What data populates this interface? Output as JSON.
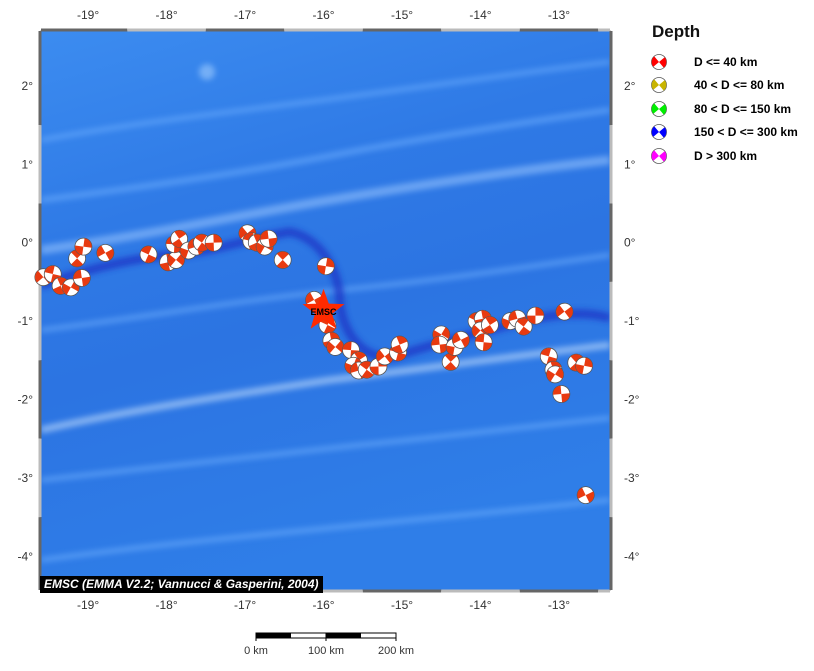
{
  "map": {
    "extent": {
      "lon_min": -19.6,
      "lon_max": -12.35,
      "lat_min": -4.43,
      "lat_max": 2.7
    },
    "lon_ticks": [
      "-19°",
      "-18°",
      "-17°",
      "-16°",
      "-15°",
      "-14°",
      "-13°"
    ],
    "lat_ticks": [
      "2°",
      "1°",
      "0°",
      "-1°",
      "-2°",
      "-3°",
      "-4°"
    ],
    "epicenter": {
      "label": "EMSC",
      "lon": -16.0,
      "lat": -0.87,
      "color": "#ff2a00"
    },
    "events": [
      [
        -19.57,
        -0.44
      ],
      [
        -19.45,
        -0.4
      ],
      [
        -19.35,
        -0.55
      ],
      [
        -19.22,
        -0.57
      ],
      [
        -19.08,
        -0.45
      ],
      [
        -19.14,
        -0.2
      ],
      [
        -19.06,
        -0.05
      ],
      [
        -18.78,
        -0.13
      ],
      [
        -18.23,
        -0.15
      ],
      [
        -17.98,
        -0.25
      ],
      [
        -17.88,
        -0.22
      ],
      [
        -17.9,
        -0.02
      ],
      [
        -17.84,
        0.05
      ],
      [
        -17.72,
        -0.1
      ],
      [
        -17.62,
        -0.05
      ],
      [
        -17.55,
        0.0
      ],
      [
        -17.4,
        0.0
      ],
      [
        -16.97,
        0.12
      ],
      [
        -16.92,
        0.02
      ],
      [
        -16.85,
        0.0
      ],
      [
        -16.75,
        -0.05
      ],
      [
        -16.7,
        0.05
      ],
      [
        -16.52,
        -0.22
      ],
      [
        -15.97,
        -0.3
      ],
      [
        -16.12,
        -0.73
      ],
      [
        -15.95,
        -1.05
      ],
      [
        -15.9,
        -1.25
      ],
      [
        -15.85,
        -1.33
      ],
      [
        -15.65,
        -1.37
      ],
      [
        -15.55,
        -1.5
      ],
      [
        -15.62,
        -1.57
      ],
      [
        -15.55,
        -1.63
      ],
      [
        -15.45,
        -1.62
      ],
      [
        -15.3,
        -1.58
      ],
      [
        -15.22,
        -1.45
      ],
      [
        -15.05,
        -1.4
      ],
      [
        -15.03,
        -1.3
      ],
      [
        -14.5,
        -1.17
      ],
      [
        -14.52,
        -1.3
      ],
      [
        -14.38,
        -1.52
      ],
      [
        -14.33,
        -1.33
      ],
      [
        -14.25,
        -1.24
      ],
      [
        -14.05,
        -1.0
      ],
      [
        -13.97,
        -0.97
      ],
      [
        -14.0,
        -1.12
      ],
      [
        -13.96,
        -1.27
      ],
      [
        -13.88,
        -1.05
      ],
      [
        -13.62,
        -1.0
      ],
      [
        -13.53,
        -0.97
      ],
      [
        -13.45,
        -1.07
      ],
      [
        -13.3,
        -0.93
      ],
      [
        -12.93,
        -0.88
      ],
      [
        -13.13,
        -1.45
      ],
      [
        -13.07,
        -1.62
      ],
      [
        -13.05,
        -1.68
      ],
      [
        -12.97,
        -1.93
      ],
      [
        -12.78,
        -1.53
      ],
      [
        -12.68,
        -1.57
      ],
      [
        -12.66,
        -3.22
      ]
    ]
  },
  "legend": {
    "title": "Depth",
    "items": [
      {
        "label": "D <= 40 km",
        "color": "#ff0000"
      },
      {
        "label": "40 < D <= 80 km",
        "color": "#c8b400"
      },
      {
        "label": "80 < D <= 150 km",
        "color": "#00ee00"
      },
      {
        "label": "150 < D <= 300 km",
        "color": "#0000ff"
      },
      {
        "label": "D > 300 km",
        "color": "#ff00ff"
      }
    ]
  },
  "credit": "EMSC (EMMA V2.2; Vannucci & Gasperini, 2004)",
  "scale": {
    "labels": [
      "0 km",
      "100 km",
      "200 km"
    ]
  },
  "colors": {
    "ocean": "#2f7fe8",
    "deep": "#1d34c8",
    "mechanism": "#e83a10"
  }
}
